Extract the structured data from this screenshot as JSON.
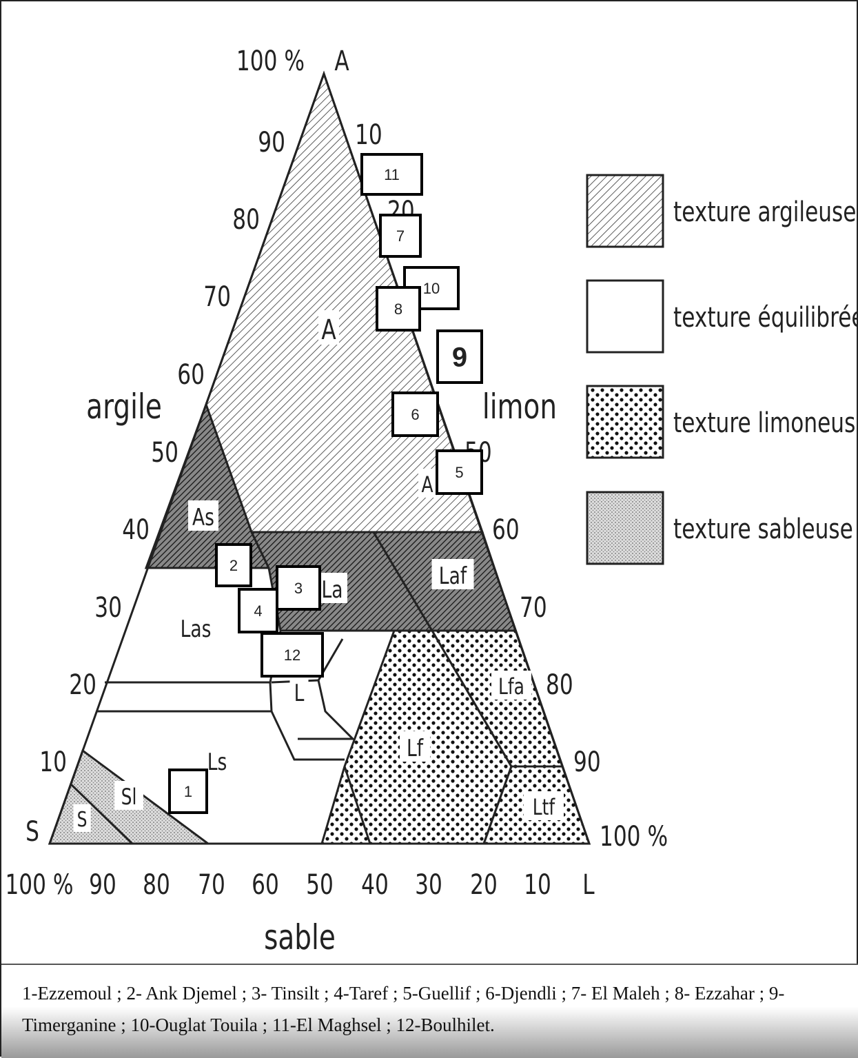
{
  "diagram": {
    "top_label": "100 %",
    "top_vertex": "A",
    "left_vertex": "S",
    "left_axis": {
      "name": "argile",
      "ticks": [
        "90",
        "80",
        "70",
        "60",
        "50",
        "40",
        "30",
        "20",
        "10"
      ]
    },
    "right_axis": {
      "name": "limon",
      "ticks": [
        "10",
        "20",
        "50",
        "60",
        "70",
        "80",
        "90",
        "100 %"
      ]
    },
    "bottom_axis": {
      "name": "sable",
      "ticks": [
        "100 %",
        "90",
        "80",
        "70",
        "60",
        "50",
        "40",
        "30",
        "20",
        "10",
        "L"
      ]
    },
    "regions": [
      "A",
      "As",
      "Las",
      "La",
      "Laf",
      "L",
      "Lfa",
      "Lf",
      "Ls",
      "Sl",
      "S",
      "Ltf",
      "A"
    ],
    "legend": [
      "texture argileuse",
      "texture équilibrée",
      "texture limoneuse",
      "texture sableuse"
    ],
    "sites": [
      "11",
      "7",
      "10",
      "8",
      "9",
      "6",
      "5",
      "2",
      "3",
      "4",
      "12",
      "1"
    ]
  },
  "caption": "1-Ezzemoul ; 2- Ank Djemel ; 3- Tinsilt ; 4-Taref ; 5-Guellif ; 6-Djendli ; 7- El Maleh ; 8- Ezzahar ; 9-Timerganine ; 10-Ouglat Touila ; 11-El Maghsel ; 12-Boulhilet."
}
